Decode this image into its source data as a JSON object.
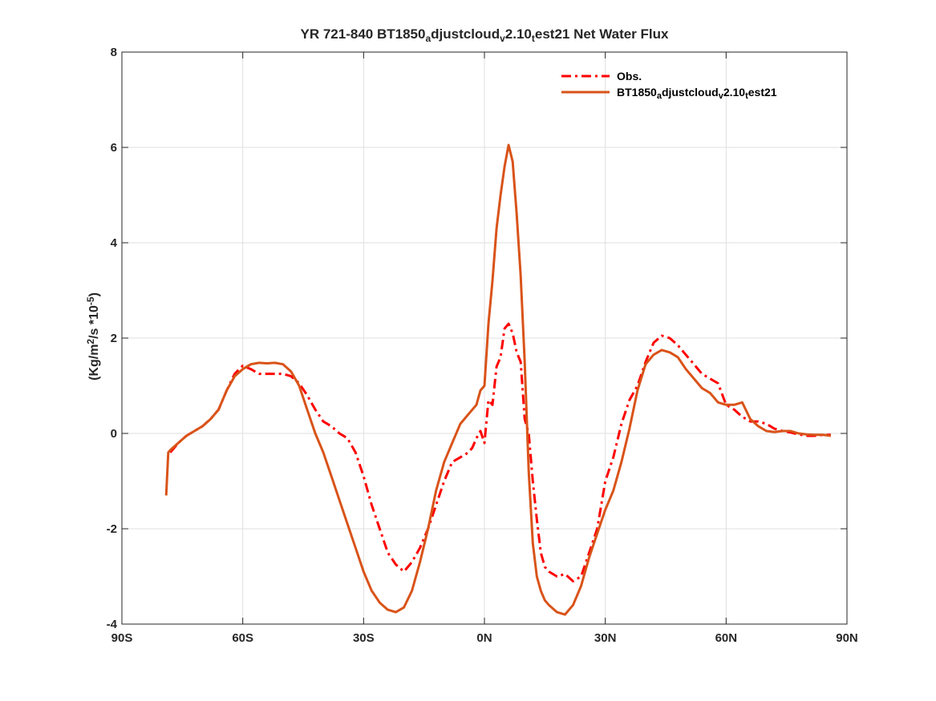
{
  "chart_data": {
    "type": "line",
    "title": {
      "parts": [
        {
          "text": "YR 721-840 BT1850",
          "sub": false
        },
        {
          "text": "a",
          "sub": true
        },
        {
          "text": "djustcloud",
          "sub": false
        },
        {
          "text": "v",
          "sub": true
        },
        {
          "text": "2.10",
          "sub": false
        },
        {
          "text": "t",
          "sub": true
        },
        {
          "text": "est21  Net Water Flux",
          "sub": false
        }
      ]
    },
    "ylabel": {
      "parts": [
        {
          "text": "(Kg/m",
          "style": "normal"
        },
        {
          "text": "2",
          "style": "sup"
        },
        {
          "text": "/s *10",
          "style": "normal"
        },
        {
          "text": "-5",
          "style": "sup"
        },
        {
          "text": ")",
          "style": "normal"
        }
      ]
    },
    "xlabel": "",
    "xlim": [
      -90,
      90
    ],
    "ylim": [
      -4,
      8
    ],
    "x_ticks": [
      {
        "value": -90,
        "label": "90S"
      },
      {
        "value": -60,
        "label": "60S"
      },
      {
        "value": -30,
        "label": "30S"
      },
      {
        "value": 0,
        "label": "0N"
      },
      {
        "value": 30,
        "label": "30N"
      },
      {
        "value": 60,
        "label": "60N"
      },
      {
        "value": 90,
        "label": "90N"
      }
    ],
    "y_ticks": [
      {
        "value": -4,
        "label": "-4"
      },
      {
        "value": -2,
        "label": "-2"
      },
      {
        "value": 0,
        "label": "0"
      },
      {
        "value": 2,
        "label": "2"
      },
      {
        "value": 4,
        "label": "4"
      },
      {
        "value": 6,
        "label": "6"
      },
      {
        "value": 8,
        "label": "8"
      }
    ],
    "grid": true,
    "legend_position": "top-right",
    "series": [
      {
        "name_parts": [
          {
            "text": "Obs.",
            "sub": false
          }
        ],
        "color": "#ff0000",
        "dash": "dashdot",
        "x": [
          -78,
          -76,
          -74,
          -72,
          -70,
          -68,
          -66,
          -64,
          -62,
          -60,
          -58,
          -56,
          -54,
          -52,
          -50,
          -48,
          -46,
          -44,
          -42,
          -40,
          -38,
          -36,
          -34,
          -32,
          -30,
          -28,
          -26,
          -24,
          -22,
          -20,
          -18,
          -16,
          -14,
          -12,
          -10,
          -8,
          -6,
          -4,
          -3,
          -2,
          -1,
          0,
          1,
          2,
          3,
          4,
          5,
          6,
          7,
          8,
          9,
          10,
          11,
          12,
          13,
          14,
          15,
          16,
          18,
          20,
          22,
          24,
          26,
          28,
          30,
          32,
          34,
          36,
          38,
          40,
          42,
          44,
          46,
          48,
          50,
          52,
          54,
          56,
          58,
          60,
          62,
          64,
          66,
          68,
          70,
          72,
          74,
          76,
          78,
          80,
          82,
          84,
          86
        ],
        "y": [
          -0.4,
          -0.2,
          -0.05,
          0.05,
          0.15,
          0.3,
          0.5,
          0.9,
          1.25,
          1.42,
          1.35,
          1.25,
          1.25,
          1.25,
          1.25,
          1.2,
          1.05,
          0.8,
          0.5,
          0.25,
          0.15,
          0.0,
          -0.1,
          -0.4,
          -0.9,
          -1.5,
          -2.0,
          -2.5,
          -2.75,
          -2.9,
          -2.7,
          -2.4,
          -2.0,
          -1.5,
          -1.0,
          -0.6,
          -0.5,
          -0.4,
          -0.3,
          -0.1,
          0.05,
          -0.2,
          0.7,
          0.6,
          1.4,
          1.6,
          2.2,
          2.3,
          2.1,
          1.7,
          1.5,
          0.3,
          0.0,
          -1.0,
          -1.8,
          -2.5,
          -2.8,
          -2.9,
          -3.0,
          -2.95,
          -3.1,
          -3.0,
          -2.5,
          -2.0,
          -1.0,
          -0.5,
          0.2,
          0.7,
          1.0,
          1.5,
          1.9,
          2.05,
          2.0,
          1.85,
          1.65,
          1.45,
          1.25,
          1.15,
          1.05,
          0.6,
          0.5,
          0.35,
          0.25,
          0.25,
          0.2,
          0.1,
          0.05,
          0.02,
          -0.02,
          -0.05,
          -0.05,
          -0.03,
          -0.03
        ]
      },
      {
        "name_parts": [
          {
            "text": "BT1850",
            "sub": false
          },
          {
            "text": "a",
            "sub": true
          },
          {
            "text": "djustcloud",
            "sub": false
          },
          {
            "text": "v",
            "sub": true
          },
          {
            "text": "2.10",
            "sub": false
          },
          {
            "text": "t",
            "sub": true
          },
          {
            "text": "est21",
            "sub": false
          }
        ],
        "color": "#d95319",
        "dash": "solid",
        "x": [
          -79,
          -78.5,
          -78,
          -76,
          -74,
          -72,
          -70,
          -68,
          -66,
          -64,
          -62,
          -60,
          -58,
          -56,
          -54,
          -52,
          -50,
          -48,
          -46,
          -44,
          -42,
          -40,
          -38,
          -36,
          -34,
          -32,
          -30,
          -28,
          -26,
          -24,
          -22,
          -20,
          -18,
          -16,
          -14,
          -12,
          -10,
          -8,
          -6,
          -4,
          -2,
          -1,
          0,
          1,
          2,
          3,
          4,
          5,
          6,
          7,
          8,
          9,
          10,
          11,
          12,
          13,
          14,
          15,
          16,
          18,
          20,
          22,
          24,
          26,
          28,
          30,
          32,
          34,
          36,
          38,
          40,
          42,
          44,
          46,
          48,
          50,
          52,
          54,
          56,
          58,
          60,
          62,
          64,
          66,
          68,
          70,
          72,
          74,
          76,
          78,
          80,
          82,
          84,
          86
        ],
        "y": [
          -1.3,
          -0.4,
          -0.35,
          -0.2,
          -0.05,
          0.05,
          0.15,
          0.3,
          0.5,
          0.9,
          1.2,
          1.35,
          1.45,
          1.48,
          1.47,
          1.48,
          1.45,
          1.3,
          1.0,
          0.5,
          0.0,
          -0.4,
          -0.9,
          -1.4,
          -1.9,
          -2.4,
          -2.9,
          -3.3,
          -3.55,
          -3.7,
          -3.75,
          -3.65,
          -3.3,
          -2.7,
          -2.0,
          -1.2,
          -0.6,
          -0.2,
          0.2,
          0.4,
          0.6,
          0.9,
          1.0,
          2.3,
          3.2,
          4.3,
          5.0,
          5.6,
          6.05,
          5.7,
          4.6,
          3.3,
          1.5,
          -0.8,
          -2.3,
          -3.0,
          -3.3,
          -3.5,
          -3.6,
          -3.75,
          -3.8,
          -3.6,
          -3.2,
          -2.6,
          -2.1,
          -1.6,
          -1.2,
          -0.6,
          0.1,
          0.9,
          1.45,
          1.65,
          1.75,
          1.7,
          1.6,
          1.35,
          1.15,
          0.95,
          0.85,
          0.65,
          0.6,
          0.6,
          0.65,
          0.3,
          0.15,
          0.05,
          0.03,
          0.05,
          0.05,
          0.0,
          -0.02,
          -0.03,
          -0.03,
          -0.05
        ]
      }
    ]
  }
}
